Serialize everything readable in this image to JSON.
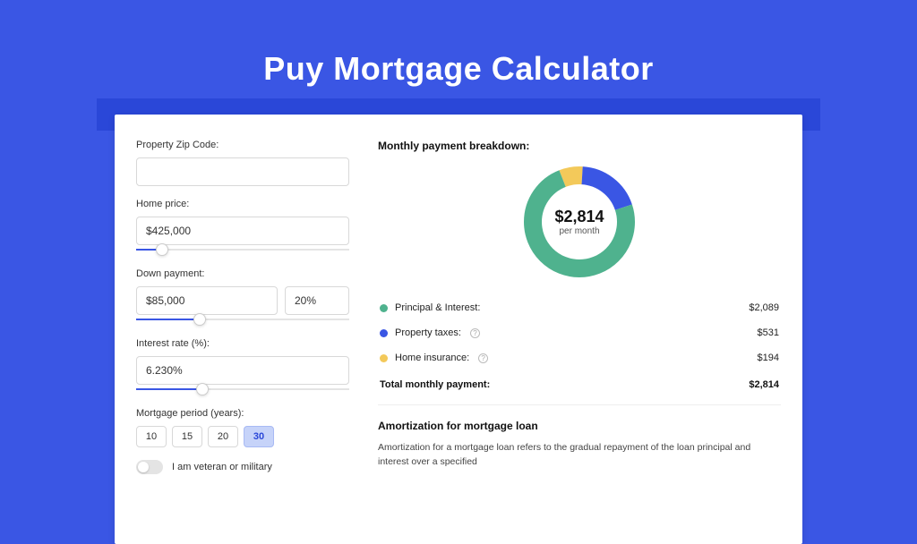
{
  "page": {
    "title": "Puy Mortgage Calculator",
    "bg_color": "#3a56e4",
    "band_color": "#2a47d8",
    "card_bg": "#ffffff"
  },
  "form": {
    "zip": {
      "label": "Property Zip Code:",
      "value": ""
    },
    "home_price": {
      "label": "Home price:",
      "value": "$425,000",
      "slider_pct": 12
    },
    "down_payment": {
      "label": "Down payment:",
      "value": "$85,000",
      "pct": "20%",
      "slider_pct": 30
    },
    "interest_rate": {
      "label": "Interest rate (%):",
      "value": "6.230%",
      "slider_pct": 31
    },
    "period": {
      "label": "Mortgage period (years):",
      "options": [
        "10",
        "15",
        "20",
        "30"
      ],
      "selected": "30"
    },
    "veteran": {
      "label": "I am veteran or military",
      "on": false
    }
  },
  "breakdown": {
    "title": "Monthly payment breakdown:",
    "center_amount": "$2,814",
    "center_sub": "per month",
    "donut": {
      "size": 128,
      "thickness": 20,
      "slices": [
        {
          "key": "principal_interest",
          "label": "Principal & Interest:",
          "value": "$2,089",
          "color": "#4fb28e",
          "fraction": 0.742,
          "has_info": false
        },
        {
          "key": "property_taxes",
          "label": "Property taxes:",
          "value": "$531",
          "color": "#3a56e4",
          "fraction": 0.189,
          "has_info": true
        },
        {
          "key": "home_insurance",
          "label": "Home insurance:",
          "value": "$194",
          "color": "#f3c95a",
          "fraction": 0.069,
          "has_info": true
        }
      ]
    },
    "total_label": "Total monthly payment:",
    "total_value": "$2,814"
  },
  "amortization": {
    "title": "Amortization for mortgage loan",
    "text": "Amortization for a mortgage loan refers to the gradual repayment of the loan principal and interest over a specified"
  }
}
